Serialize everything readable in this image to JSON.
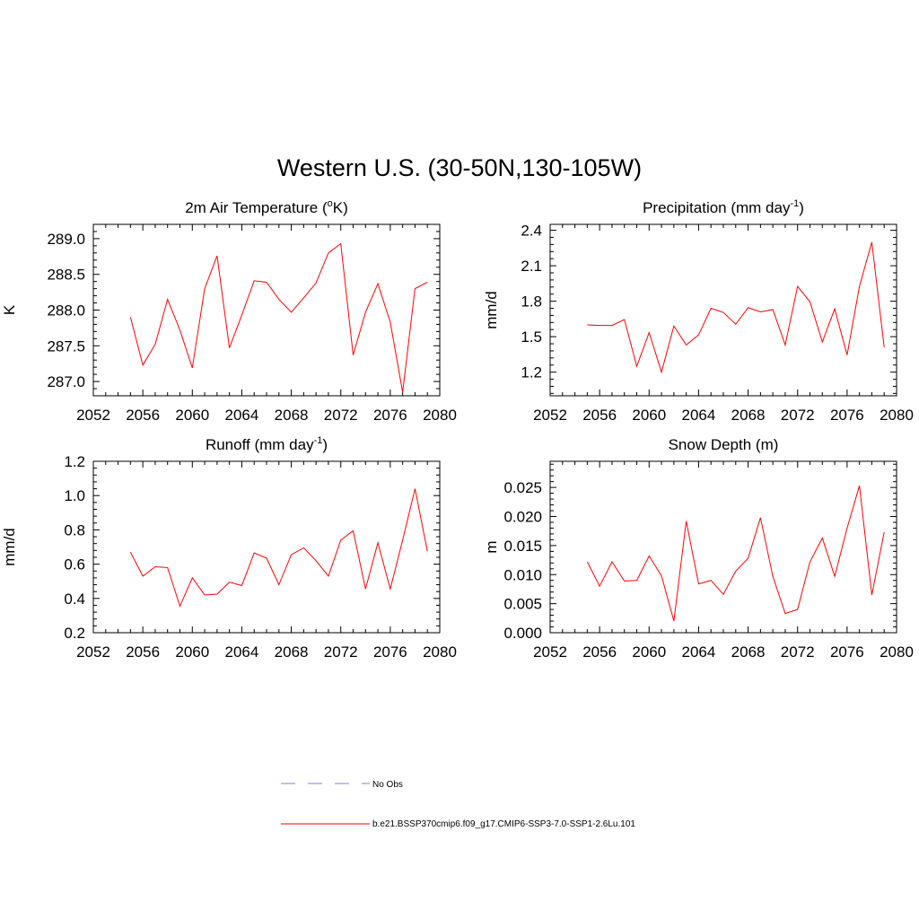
{
  "figure_title": "Western U.S. (30-50N,130-105W)",
  "legend": {
    "items": [
      {
        "label": "No Obs",
        "color": "#9999dd",
        "dashed": true
      },
      {
        "label": "b.e21.BSSP370cmip6.f09_g17.CMIP6-SSP3-7.0-SSP1-2.6Lu.101",
        "color": "#ff0000",
        "dashed": false
      }
    ]
  },
  "colors": {
    "series": "#ff0000",
    "axis": "#000000"
  },
  "chart_data": [
    {
      "type": "line",
      "title": {
        "main": "2m Air Temperature (",
        "sup": "o",
        "end": "K)"
      },
      "ylabel": "K",
      "xlim": [
        2052,
        2080
      ],
      "ylim": [
        286.8,
        289.2
      ],
      "xticks": [
        2052,
        2056,
        2060,
        2064,
        2068,
        2072,
        2076,
        2080
      ],
      "yticks": [
        287.0,
        287.5,
        288.0,
        288.5,
        289.0
      ],
      "ytick_labels": [
        "287.0",
        "287.5",
        "288.0",
        "288.5",
        "289.0"
      ],
      "x": [
        2055,
        2056,
        2057,
        2058,
        2059,
        2060,
        2061,
        2062,
        2063,
        2064,
        2065,
        2066,
        2067,
        2068,
        2069,
        2070,
        2071,
        2072,
        2073,
        2074,
        2075,
        2076,
        2077,
        2078,
        2079
      ],
      "series": [
        {
          "values": [
            287.9,
            287.23,
            287.52,
            288.15,
            287.72,
            287.19,
            288.3,
            288.76,
            287.47,
            287.93,
            288.41,
            288.39,
            288.15,
            287.97,
            288.17,
            288.38,
            288.8,
            288.93,
            287.37,
            287.97,
            288.37,
            287.83,
            286.85,
            288.3,
            288.39
          ]
        }
      ]
    },
    {
      "type": "line",
      "title": {
        "main": "Precipitation (mm day",
        "sup": "-1",
        "end": ")"
      },
      "ylabel": "mm/d",
      "xlim": [
        2052,
        2080
      ],
      "ylim": [
        1.0,
        2.45
      ],
      "xticks": [
        2052,
        2056,
        2060,
        2064,
        2068,
        2072,
        2076,
        2080
      ],
      "yticks": [
        1.2,
        1.5,
        1.8,
        2.1,
        2.4
      ],
      "ytick_labels": [
        "1.2",
        "1.5",
        "1.8",
        "2.1",
        "2.4"
      ],
      "x": [
        2055,
        2056,
        2057,
        2058,
        2059,
        2060,
        2061,
        2062,
        2063,
        2064,
        2065,
        2066,
        2067,
        2068,
        2069,
        2070,
        2071,
        2072,
        2073,
        2074,
        2075,
        2076,
        2077,
        2078,
        2079
      ],
      "series": [
        {
          "values": [
            1.6,
            1.595,
            1.595,
            1.645,
            1.25,
            1.535,
            1.2,
            1.59,
            1.43,
            1.515,
            1.74,
            1.705,
            1.605,
            1.745,
            1.71,
            1.73,
            1.43,
            1.925,
            1.795,
            1.455,
            1.735,
            1.345,
            1.925,
            2.3,
            1.41
          ]
        }
      ]
    },
    {
      "type": "line",
      "title": {
        "main": "Runoff (mm day",
        "sup": "-1",
        "end": ")"
      },
      "ylabel": "mm/d",
      "xlim": [
        2052,
        2080
      ],
      "ylim": [
        0.2,
        1.2
      ],
      "xticks": [
        2052,
        2056,
        2060,
        2064,
        2068,
        2072,
        2076,
        2080
      ],
      "yticks": [
        0.2,
        0.4,
        0.6,
        0.8,
        1.0,
        1.2
      ],
      "ytick_labels": [
        "0.2",
        "0.4",
        "0.6",
        "0.8",
        "1.0",
        "1.2"
      ],
      "x": [
        2055,
        2056,
        2057,
        2058,
        2059,
        2060,
        2061,
        2062,
        2063,
        2064,
        2065,
        2066,
        2067,
        2068,
        2069,
        2070,
        2071,
        2072,
        2073,
        2074,
        2075,
        2076,
        2077,
        2078,
        2079
      ],
      "series": [
        {
          "values": [
            0.67,
            0.53,
            0.585,
            0.58,
            0.355,
            0.52,
            0.42,
            0.425,
            0.495,
            0.475,
            0.665,
            0.635,
            0.48,
            0.655,
            0.695,
            0.62,
            0.53,
            0.74,
            0.795,
            0.455,
            0.725,
            0.455,
            0.74,
            1.04,
            0.675
          ]
        }
      ]
    },
    {
      "type": "line",
      "title": {
        "main": "Snow Depth (m)",
        "sup": "",
        "end": ""
      },
      "ylabel": "m",
      "xlim": [
        2052,
        2080
      ],
      "ylim": [
        0.0,
        0.0295
      ],
      "xticks": [
        2052,
        2056,
        2060,
        2064,
        2068,
        2072,
        2076,
        2080
      ],
      "yticks": [
        0.0,
        0.005,
        0.01,
        0.015,
        0.02,
        0.025
      ],
      "ytick_labels": [
        "0.000",
        "0.005",
        "0.010",
        "0.015",
        "0.020",
        "0.025"
      ],
      "x": [
        2055,
        2056,
        2057,
        2058,
        2059,
        2060,
        2061,
        2062,
        2063,
        2064,
        2065,
        2066,
        2067,
        2068,
        2069,
        2070,
        2071,
        2072,
        2073,
        2074,
        2075,
        2076,
        2077,
        2078,
        2079
      ],
      "series": [
        {
          "values": [
            0.0122,
            0.008,
            0.0122,
            0.0089,
            0.009,
            0.0132,
            0.0098,
            0.002,
            0.0192,
            0.0084,
            0.009,
            0.0066,
            0.0106,
            0.0128,
            0.0198,
            0.0097,
            0.0033,
            0.004,
            0.0122,
            0.0163,
            0.0097,
            0.018,
            0.0253,
            0.0065,
            0.0173
          ]
        }
      ]
    }
  ]
}
